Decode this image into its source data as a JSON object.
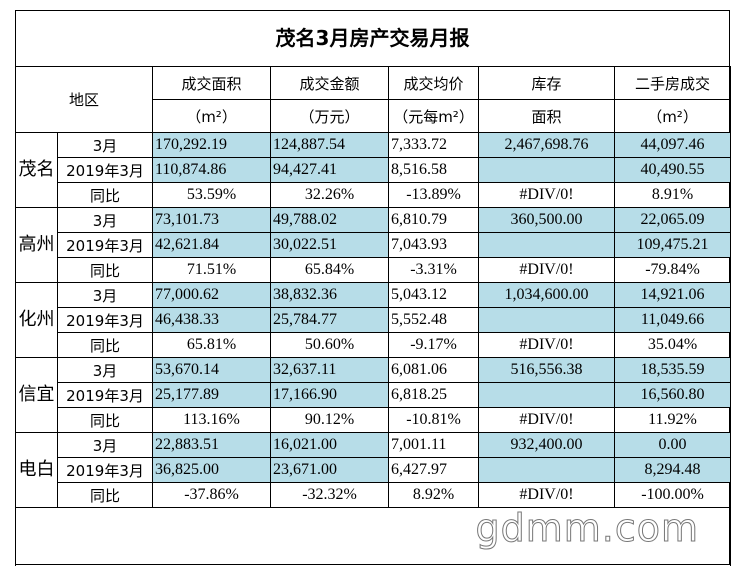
{
  "title": "茂名3月房产交易月报",
  "header": {
    "region": "地区",
    "cols": [
      {
        "line1": "成交面积",
        "line2": "（m²）"
      },
      {
        "line1": "成交金额",
        "line2": "（万元）"
      },
      {
        "line1": "成交均价",
        "line2": "（元每m²）"
      },
      {
        "line1": "库存",
        "line2": "面积"
      },
      {
        "line1": "二手房成交",
        "line2": "（m²）"
      }
    ]
  },
  "row_labels": [
    "3月",
    "2019年3月",
    "同比"
  ],
  "regions": [
    {
      "name": "茂名",
      "rows": [
        [
          "170,292.19",
          "124,887.54",
          "7,333.72",
          "2,467,698.76",
          "44,097.46"
        ],
        [
          "110,874.86",
          "94,427.41",
          "8,516.58",
          "",
          "40,490.55"
        ],
        [
          "53.59%",
          "32.26%",
          "-13.89%",
          "#DIV/0!",
          "8.91%"
        ]
      ]
    },
    {
      "name": "高州",
      "rows": [
        [
          "73,101.73",
          "49,788.02",
          "6,810.79",
          "360,500.00",
          "22,065.09"
        ],
        [
          "42,621.84",
          "30,022.51",
          "7,043.93",
          "",
          "109,475.21"
        ],
        [
          "71.51%",
          "65.84%",
          "-3.31%",
          "#DIV/0!",
          "-79.84%"
        ]
      ]
    },
    {
      "name": "化州",
      "rows": [
        [
          "77,000.62",
          "38,832.36",
          "5,043.12",
          "1,034,600.00",
          "14,921.06"
        ],
        [
          "46,438.33",
          "25,784.77",
          "5,552.48",
          "",
          "11,049.66"
        ],
        [
          "65.81%",
          "50.60%",
          "-9.17%",
          "#DIV/0!",
          "35.04%"
        ]
      ]
    },
    {
      "name": "信宜",
      "rows": [
        [
          "53,670.14",
          "32,637.11",
          "6,081.06",
          "516,556.38",
          "18,535.59"
        ],
        [
          "25,177.89",
          "17,166.90",
          "6,818.25",
          "",
          "16,560.80"
        ],
        [
          "113.16%",
          "90.12%",
          "-10.81%",
          "#DIV/0!",
          "11.92%"
        ]
      ]
    },
    {
      "name": "电白",
      "rows": [
        [
          "22,883.51",
          "16,021.00",
          "7,001.11",
          "932,400.00",
          "0.00"
        ],
        [
          "36,825.00",
          "23,671.00",
          "6,427.97",
          "",
          "8,294.48"
        ],
        [
          "-37.86%",
          "-32.32%",
          "8.92%",
          "#DIV/0!",
          "-100.00%"
        ]
      ]
    }
  ],
  "watermark": "gdmm.com",
  "colors": {
    "highlight": "#b7dde8"
  }
}
